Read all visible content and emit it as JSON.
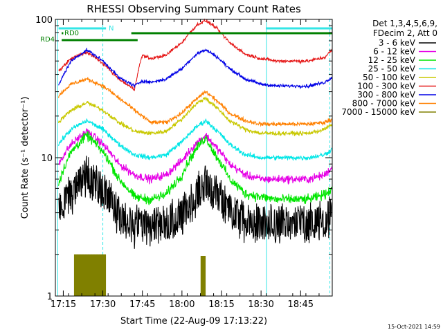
{
  "chart_data": {
    "type": "line",
    "title": "RHESSI Observing Summary Count Rates",
    "xlabel": "Start Time (22-Aug-09 17:13:22)",
    "ylabel": "Count Rate (s⁻¹ detector⁻¹)",
    "yscale": "log",
    "ylim": [
      1,
      100
    ],
    "xlim_minutes": [
      17.2,
      18.95
    ],
    "x_tick_labels": [
      "17:15",
      "17:30",
      "17:45",
      "18:00",
      "18:15",
      "18:30",
      "18:45"
    ],
    "y_tick_labels": [
      "1",
      "10",
      "100"
    ],
    "grid": false,
    "legend_position": "top-right",
    "legend_header": [
      "Det 1,3,4,5,6,9,",
      "FDecim 2, Att 0"
    ],
    "timestamp": "15-Oct-2021 14:59",
    "flag_labels": [
      "RD0",
      "RD4",
      "N"
    ],
    "flags": [
      {
        "label": "N",
        "color": "#33e6e6",
        "segments": [
          [
            17.22,
            17.52
          ],
          [
            18.53,
            18.95
          ]
        ]
      },
      {
        "label": "RD0",
        "color": "#008000",
        "segments": [
          [
            17.24,
            17.25
          ],
          [
            17.68,
            18.95
          ]
        ]
      },
      {
        "label": "RD4",
        "color": "#008000",
        "segments": [
          [
            17.24,
            17.72
          ]
        ]
      }
    ],
    "vertical_markers": [
      {
        "x": 17.215,
        "style": "solid",
        "color": "#33e6e6"
      },
      {
        "x": 17.5,
        "style": "dashed",
        "color": "#33e6e6"
      },
      {
        "x": 18.535,
        "style": "solid",
        "color": "#33e6e6"
      },
      {
        "x": 18.935,
        "style": "dashed",
        "color": "#33e6e6"
      }
    ],
    "series": [
      {
        "name": "3 - 6 keV",
        "color": "#000000",
        "noise": 0.25,
        "x": [
          17.22,
          17.3,
          17.4,
          17.5,
          17.6,
          17.7,
          17.8,
          17.9,
          18.0,
          18.1,
          18.15,
          18.2,
          18.3,
          18.4,
          18.5,
          18.6,
          18.7,
          18.8,
          18.9,
          18.95
        ],
        "y": [
          4.5,
          6.0,
          8.0,
          6.2,
          4.2,
          3.5,
          3.5,
          3.6,
          4.0,
          6.0,
          7.0,
          6.0,
          4.5,
          3.6,
          3.5,
          3.5,
          3.5,
          3.6,
          3.8,
          4.2
        ]
      },
      {
        "name": "6 - 12 keV",
        "color": "#e600e6",
        "noise": 0.1,
        "x": [
          17.22,
          17.3,
          17.4,
          17.5,
          17.6,
          17.7,
          17.8,
          17.9,
          18.0,
          18.1,
          18.15,
          18.2,
          18.3,
          18.4,
          18.5,
          18.6,
          18.7,
          18.8,
          18.9,
          18.95
        ],
        "y": [
          9.0,
          12.5,
          15.5,
          12.5,
          9.0,
          7.5,
          7.0,
          7.5,
          9.5,
          13.0,
          14.5,
          12.5,
          9.0,
          7.5,
          7.0,
          7.0,
          7.0,
          7.0,
          7.5,
          8.5
        ]
      },
      {
        "name": "12 - 25 keV",
        "color": "#00e600",
        "noise": 0.12,
        "x": [
          17.22,
          17.3,
          17.4,
          17.5,
          17.6,
          17.7,
          17.8,
          17.9,
          18.0,
          18.1,
          18.15,
          18.2,
          18.3,
          18.4,
          18.5,
          18.6,
          18.7,
          18.8,
          18.9,
          18.95
        ],
        "y": [
          6.5,
          11.0,
          14.5,
          11.0,
          7.0,
          5.2,
          5.0,
          5.4,
          7.5,
          12.0,
          14.0,
          11.0,
          7.0,
          5.5,
          5.2,
          5.0,
          5.0,
          5.0,
          5.4,
          6.0
        ]
      },
      {
        "name": "25 - 50 keV",
        "color": "#00e6e6",
        "noise": 0.06,
        "x": [
          17.22,
          17.3,
          17.4,
          17.5,
          17.6,
          17.7,
          17.8,
          17.9,
          18.0,
          18.1,
          18.15,
          18.2,
          18.3,
          18.4,
          18.5,
          18.6,
          18.7,
          18.8,
          18.9,
          18.95
        ],
        "y": [
          12.5,
          16.0,
          18.5,
          16.0,
          12.5,
          10.5,
          10.0,
          10.5,
          13.0,
          17.0,
          18.5,
          16.5,
          12.5,
          10.5,
          10.0,
          10.0,
          10.0,
          10.0,
          10.5,
          11.5
        ]
      },
      {
        "name": "50 - 100 keV",
        "color": "#c8c800",
        "noise": 0.05,
        "x": [
          17.22,
          17.3,
          17.4,
          17.5,
          17.6,
          17.7,
          17.8,
          17.9,
          18.0,
          18.1,
          18.15,
          18.2,
          18.3,
          18.4,
          18.5,
          18.6,
          18.7,
          18.8,
          18.9,
          18.95
        ],
        "y": [
          18.0,
          22.0,
          25.0,
          22.0,
          18.0,
          15.5,
          15.0,
          15.5,
          19.0,
          25.0,
          27.0,
          24.0,
          18.5,
          16.0,
          15.0,
          15.0,
          15.0,
          15.0,
          16.0,
          17.5
        ]
      },
      {
        "name": "100 - 300 keV",
        "color": "#e61a1a",
        "noise": 0.04,
        "x": [
          17.22,
          17.3,
          17.4,
          17.5,
          17.6,
          17.7,
          17.75,
          17.8,
          17.9,
          18.0,
          18.1,
          18.15,
          18.2,
          18.3,
          18.4,
          18.5,
          18.6,
          18.7,
          18.8,
          18.9,
          18.95
        ],
        "y": [
          42.0,
          52.0,
          58.0,
          48.0,
          37.0,
          31.0,
          55.0,
          52.0,
          55.0,
          68.0,
          92.0,
          98.0,
          90.0,
          68.0,
          56.0,
          52.0,
          50.0,
          50.0,
          50.0,
          53.0,
          60.0
        ]
      },
      {
        "name": "300 - 800 keV",
        "color": "#0000e6",
        "noise": 0.04,
        "x": [
          17.22,
          17.3,
          17.4,
          17.5,
          17.6,
          17.7,
          17.75,
          17.8,
          17.9,
          18.0,
          18.1,
          18.15,
          18.2,
          18.3,
          18.4,
          18.5,
          18.6,
          18.7,
          18.8,
          18.9,
          18.95
        ],
        "y": [
          33.0,
          50.0,
          60.0,
          50.0,
          38.0,
          33.0,
          36.0,
          35.0,
          37.0,
          44.0,
          57.0,
          60.0,
          56.0,
          44.0,
          37.0,
          34.0,
          33.0,
          33.0,
          33.0,
          35.0,
          38.0
        ]
      },
      {
        "name": "800 - 7000 keV",
        "color": "#ff8000",
        "noise": 0.05,
        "x": [
          17.22,
          17.3,
          17.4,
          17.5,
          17.6,
          17.7,
          17.8,
          17.9,
          18.0,
          18.1,
          18.15,
          18.2,
          18.3,
          18.4,
          18.5,
          18.6,
          18.7,
          18.8,
          18.9,
          18.95
        ],
        "y": [
          28.0,
          34.0,
          37.0,
          33.0,
          27.0,
          22.0,
          18.0,
          18.0,
          21.0,
          27.0,
          30.0,
          27.0,
          21.0,
          18.5,
          17.5,
          17.5,
          17.5,
          17.5,
          18.0,
          19.0
        ]
      },
      {
        "name": "7000 - 15000 keV",
        "color": "#808000",
        "noise": 0.0,
        "bursts": [
          [
            17.32,
            17.52,
            2.0
          ],
          [
            18.12,
            18.15,
            1.95
          ]
        ]
      }
    ]
  }
}
